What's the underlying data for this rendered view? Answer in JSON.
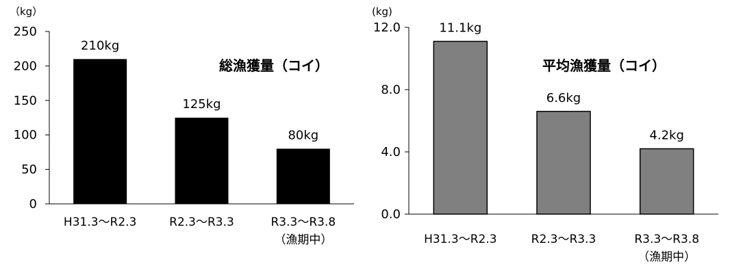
{
  "chart_data": [
    {
      "type": "bar",
      "title": "総漁獲量（コイ）",
      "unit": "（kg）",
      "categories": [
        [
          "H31.3～R2.3"
        ],
        [
          "R2.3～R3.3"
        ],
        [
          "R3.3～R3.8",
          "（漁期中）"
        ]
      ],
      "values": [
        210,
        125,
        80
      ],
      "data_labels": [
        "210kg",
        "125kg",
        "80kg"
      ],
      "yticks": [
        "0",
        "50",
        "100",
        "150",
        "200",
        "250"
      ],
      "ylim": [
        0,
        250
      ],
      "bar_color": "#000000",
      "grid": false
    },
    {
      "type": "bar",
      "title": "平均漁獲量（コイ）",
      "unit": "(kg)",
      "categories": [
        [
          "H31.3～R2.3"
        ],
        [
          "R2.3～R3.3"
        ],
        [
          "R3.3～R3.8",
          "（漁期中）"
        ]
      ],
      "values": [
        11.1,
        6.6,
        4.2
      ],
      "data_labels": [
        "11.1kg",
        "6.6kg",
        "4.2kg"
      ],
      "yticks": [
        "0.0",
        "4.0",
        "8.0",
        "12.0"
      ],
      "ylim": [
        0,
        12
      ],
      "bar_color": "#808080",
      "grid": false
    }
  ]
}
